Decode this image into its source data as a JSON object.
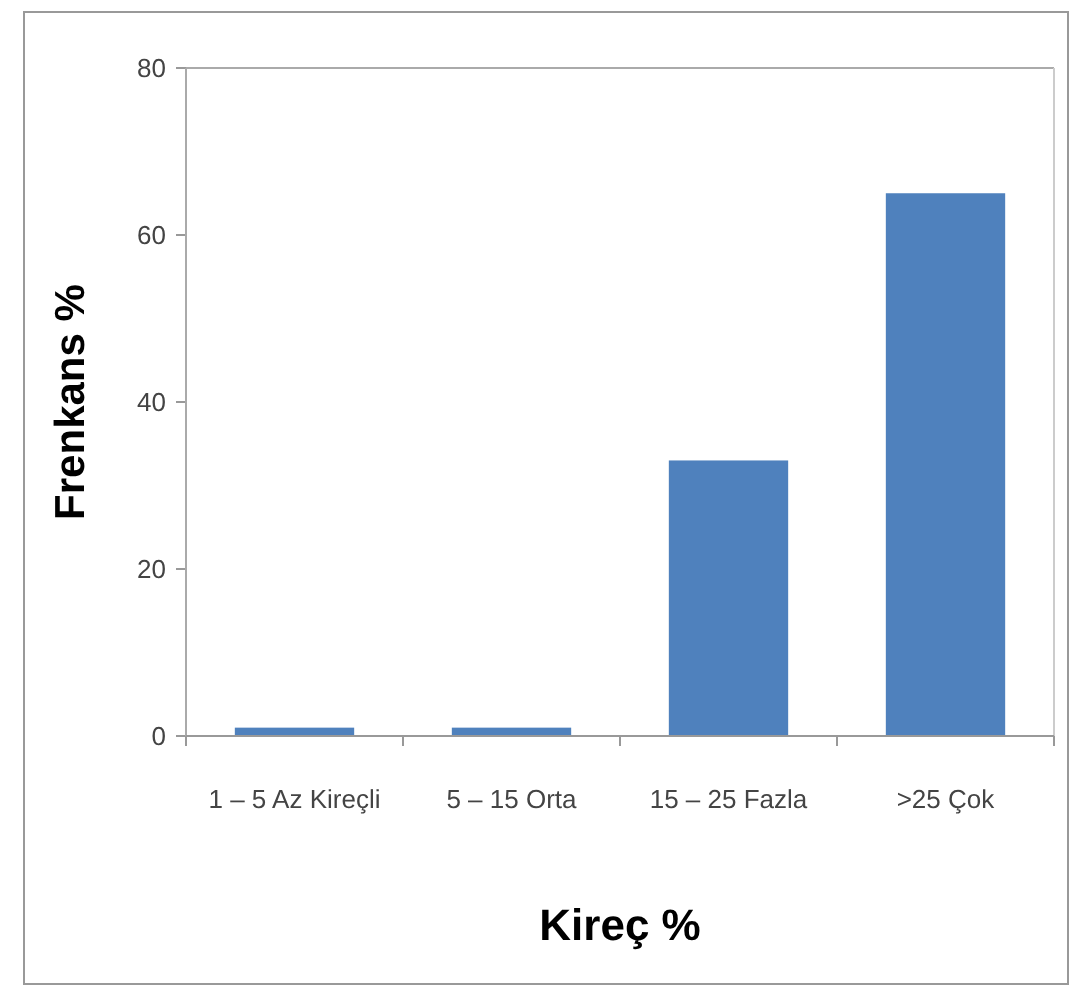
{
  "chart_data": {
    "type": "bar",
    "xlabel": "Kireç %",
    "ylabel": "Frenkans %",
    "categories": [
      "1 – 5 Az Kireçli",
      "5 – 15 Orta",
      "15 – 25 Fazla",
      ">25 Çok"
    ],
    "values": [
      1,
      1,
      33,
      65
    ],
    "color": "#4f81bd",
    "ylim": [
      0,
      80
    ],
    "yticks": [
      0,
      20,
      40,
      60,
      80
    ]
  }
}
